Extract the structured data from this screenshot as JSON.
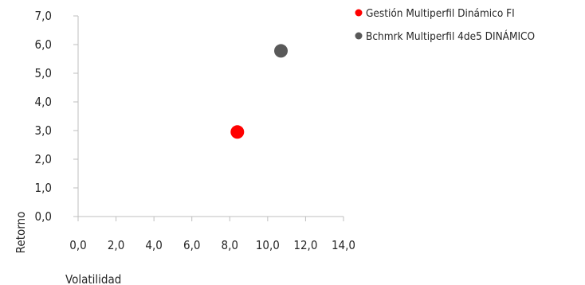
{
  "chart_data": {
    "type": "scatter",
    "xlabel": "Volatilidad",
    "ylabel": "Retorno",
    "xlim": [
      0,
      14
    ],
    "ylim": [
      0,
      7
    ],
    "x_ticks": [
      "0,0",
      "2,0",
      "4,0",
      "6,0",
      "8,0",
      "10,0",
      "12,0",
      "14,0"
    ],
    "y_ticks": [
      "0,0",
      "1,0",
      "2,0",
      "3,0",
      "4,0",
      "5,0",
      "6,0",
      "7,0"
    ],
    "grid": false,
    "legend_position": "top-right",
    "series": [
      {
        "name": "Gestión Multiperfil Dinámico FI",
        "color": "#ff0000",
        "points": [
          {
            "x": 8.4,
            "y": 2.95
          }
        ]
      },
      {
        "name": "Bchmrk Multiperfil 4de5 DINÁMICO",
        "color": "#595959",
        "points": [
          {
            "x": 10.7,
            "y": 5.78
          }
        ]
      }
    ]
  }
}
